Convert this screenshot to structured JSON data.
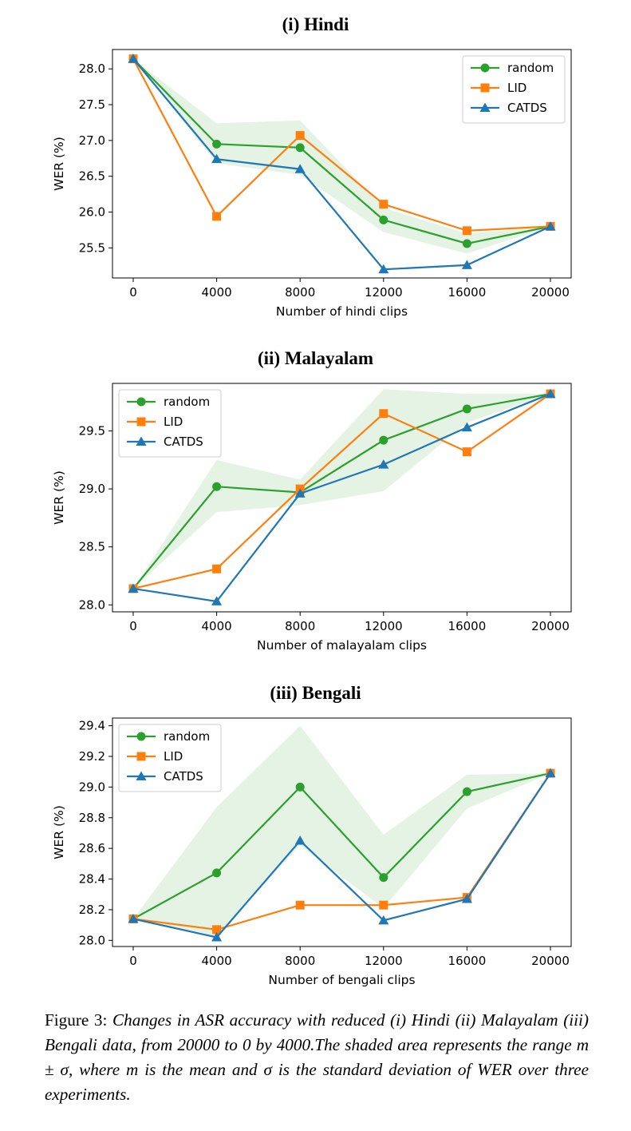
{
  "colors": {
    "random": "#2ca02c",
    "lid": "#ff7f0e",
    "catds": "#1f77b4",
    "band": "#2ca02c"
  },
  "chart_data": [
    {
      "type": "line",
      "title": "(i) Hindi",
      "xlabel": "Number of hindi clips",
      "ylabel": "WER (%)",
      "x": [
        0,
        4000,
        8000,
        12000,
        16000,
        20000
      ],
      "xticks": [
        "0",
        "4000",
        "8000",
        "12000",
        "16000",
        "20000"
      ],
      "yticks": [
        "25.5",
        "26.0",
        "26.5",
        "27.0",
        "27.5",
        "28.0"
      ],
      "ylim": [
        25.08,
        28.27
      ],
      "legend_position": "upper-right",
      "series": [
        {
          "name": "random",
          "marker": "circle",
          "values": [
            28.14,
            26.95,
            26.9,
            25.89,
            25.56,
            25.8
          ]
        },
        {
          "name": "LID",
          "marker": "square",
          "values": [
            28.14,
            25.94,
            27.07,
            26.11,
            25.74,
            25.8
          ]
        },
        {
          "name": "CATDS",
          "marker": "triangle",
          "values": [
            28.14,
            26.74,
            26.6,
            25.2,
            25.26,
            25.8
          ]
        }
      ],
      "band": {
        "lower": [
          28.14,
          26.68,
          26.52,
          25.72,
          25.42,
          25.8
        ],
        "upper": [
          28.14,
          27.24,
          27.28,
          26.06,
          25.7,
          25.8
        ]
      }
    },
    {
      "type": "line",
      "title": "(ii) Malayalam",
      "xlabel": "Number of malayalam clips",
      "ylabel": "WER (%)",
      "x": [
        0,
        4000,
        8000,
        12000,
        16000,
        20000
      ],
      "xticks": [
        "0",
        "4000",
        "8000",
        "12000",
        "16000",
        "20000"
      ],
      "yticks": [
        "28.0",
        "28.5",
        "29.0",
        "29.5"
      ],
      "ylim": [
        27.94,
        29.91
      ],
      "legend_position": "upper-left",
      "series": [
        {
          "name": "random",
          "marker": "circle",
          "values": [
            28.14,
            29.02,
            28.97,
            29.42,
            29.69,
            29.82
          ]
        },
        {
          "name": "LID",
          "marker": "square",
          "values": [
            28.14,
            28.31,
            29.0,
            29.65,
            29.32,
            29.82
          ]
        },
        {
          "name": "CATDS",
          "marker": "triangle",
          "values": [
            28.14,
            28.03,
            28.96,
            29.21,
            29.53,
            29.82
          ]
        }
      ],
      "band": {
        "lower": [
          28.14,
          28.8,
          28.86,
          28.98,
          29.57,
          29.82
        ],
        "upper": [
          28.14,
          29.25,
          29.08,
          29.86,
          29.82,
          29.82
        ]
      }
    },
    {
      "type": "line",
      "title": "(iii) Bengali",
      "xlabel": "Number of bengali clips",
      "ylabel": "WER (%)",
      "x": [
        0,
        4000,
        8000,
        12000,
        16000,
        20000
      ],
      "xticks": [
        "0",
        "4000",
        "8000",
        "12000",
        "16000",
        "20000"
      ],
      "yticks": [
        "28.0",
        "28.2",
        "28.4",
        "28.6",
        "28.8",
        "29.0",
        "29.2",
        "29.4"
      ],
      "ylim": [
        27.96,
        29.45
      ],
      "legend_position": "upper-left",
      "series": [
        {
          "name": "random",
          "marker": "circle",
          "values": [
            28.14,
            28.44,
            29.0,
            28.41,
            28.97,
            29.09
          ]
        },
        {
          "name": "LID",
          "marker": "square",
          "values": [
            28.14,
            28.07,
            28.23,
            28.23,
            28.28,
            29.09
          ]
        },
        {
          "name": "CATDS",
          "marker": "triangle",
          "values": [
            28.14,
            28.02,
            28.65,
            28.13,
            28.27,
            29.09
          ]
        }
      ],
      "band": {
        "lower": [
          28.14,
          28.03,
          28.62,
          28.21,
          28.86,
          29.09
        ],
        "upper": [
          28.14,
          28.87,
          29.4,
          28.69,
          29.08,
          29.09
        ]
      }
    }
  ],
  "caption": {
    "lead": "Figure 3:",
    "body": "Changes in ASR accuracy with reduced (i) Hindi (ii) Malayalam (iii) Bengali data, from 20000 to 0 by 4000.The shaded area represents the range m ± σ, where m is the mean and σ is the standard deviation of WER over three experiments."
  }
}
